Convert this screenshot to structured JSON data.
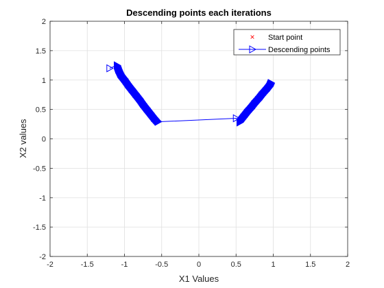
{
  "chart_data": {
    "type": "line",
    "title": "Descending points each iterations",
    "xlabel": "X1 Values",
    "ylabel": "X2 values",
    "xlim": [
      -2,
      2
    ],
    "ylim": [
      -2,
      2
    ],
    "xticks": [
      -2,
      -1.5,
      -1,
      -0.5,
      0,
      0.5,
      1,
      1.5,
      2
    ],
    "yticks": [
      -2,
      -1.5,
      -1,
      -0.5,
      0,
      0.5,
      1,
      1.5,
      2
    ],
    "xtick_labels": [
      "-2",
      "-1.5",
      "-1",
      "-0.5",
      "0",
      "0.5",
      "1",
      "1.5",
      "2"
    ],
    "ytick_labels": [
      "-2",
      "-1.5",
      "-1",
      "-0.5",
      "0",
      "0.5",
      "1",
      "1.5",
      "2"
    ],
    "grid": true,
    "legend_position": "top-right",
    "series": [
      {
        "name": "Start point",
        "marker": "x",
        "color": "#ff0000",
        "line": "none",
        "x": [],
        "y": []
      },
      {
        "name": "Descending points",
        "marker": "triangle-right",
        "color": "#0000ff",
        "line": "solid",
        "x": [
          -1.2,
          -1.1,
          -1.08,
          -1.05,
          -1.0,
          -0.95,
          -0.9,
          -0.85,
          -0.8,
          -0.75,
          -0.7,
          -0.65,
          -0.6,
          -0.55,
          0.5,
          0.55,
          0.6,
          0.65,
          0.7,
          0.75,
          0.8,
          0.85,
          0.9,
          0.95,
          0.97
        ],
        "y": [
          1.2,
          1.25,
          1.18,
          1.1,
          1.02,
          0.93,
          0.85,
          0.77,
          0.69,
          0.6,
          0.52,
          0.44,
          0.36,
          0.29,
          0.35,
          0.28,
          0.36,
          0.44,
          0.51,
          0.59,
          0.66,
          0.74,
          0.81,
          0.89,
          0.95
        ]
      }
    ]
  }
}
